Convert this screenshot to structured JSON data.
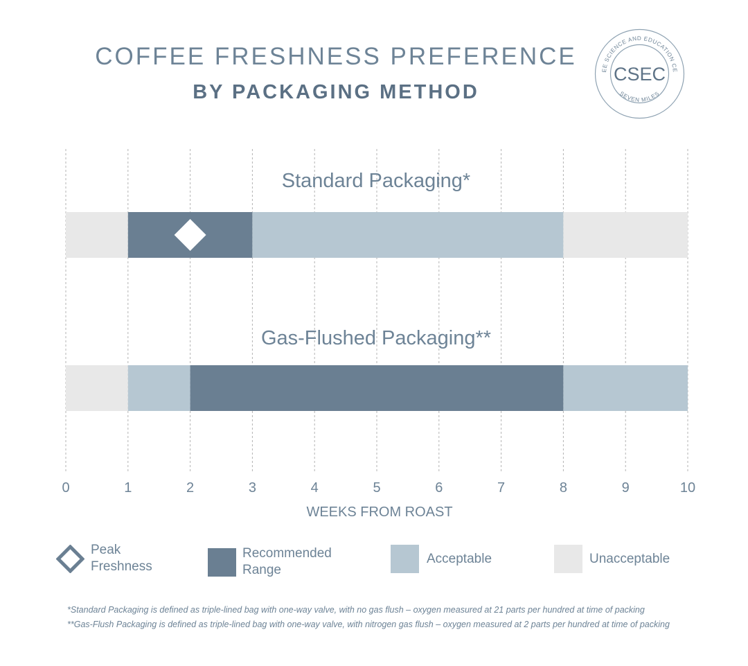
{
  "title": "COFFEE FRESHNESS PREFERENCE",
  "subtitle": "BY PACKAGING METHOD",
  "logo": {
    "text": "CSEC",
    "ring_top": "COFFEE SCIENCE AND EDUCATION CENTRE",
    "ring_bottom": "SEVEN MILES"
  },
  "colors": {
    "recommended": "#6a7f92",
    "acceptable": "#b6c7d2",
    "unacceptable": "#e8e8e8",
    "text": "#6d8396"
  },
  "chart_data": {
    "type": "bar",
    "orientation": "horizontal-ranges",
    "xlabel": "WEEKS FROM ROAST",
    "xlim": [
      0,
      10
    ],
    "xticks": [
      "0",
      "1",
      "2",
      "3",
      "4",
      "5",
      "6",
      "7",
      "8",
      "9",
      "10"
    ],
    "grid": true,
    "series": [
      {
        "name": "Standard Packaging*",
        "segments": [
          {
            "start": 0,
            "end": 1,
            "category": "unacceptable"
          },
          {
            "start": 1,
            "end": 3,
            "category": "recommended"
          },
          {
            "start": 3,
            "end": 8,
            "category": "acceptable"
          },
          {
            "start": 8,
            "end": 10,
            "category": "unacceptable"
          }
        ],
        "peak": 2
      },
      {
        "name": "Gas-Flushed Packaging**",
        "segments": [
          {
            "start": 0,
            "end": 1,
            "category": "unacceptable"
          },
          {
            "start": 1,
            "end": 2,
            "category": "acceptable"
          },
          {
            "start": 2,
            "end": 8,
            "category": "recommended"
          },
          {
            "start": 8,
            "end": 10,
            "category": "acceptable"
          }
        ]
      }
    ],
    "legend": [
      {
        "key": "peak",
        "label": "Peak\nFreshness"
      },
      {
        "key": "recommended",
        "label": "Recommended\nRange"
      },
      {
        "key": "acceptable",
        "label": "Acceptable"
      },
      {
        "key": "unacceptable",
        "label": "Unacceptable"
      }
    ]
  },
  "footnotes": [
    "*Standard Packaging is defined as triple-lined bag with one-way valve, with no gas flush – oxygen measured at 21 parts per hundred at time of packing",
    "**Gas-Flush Packaging is defined as triple-lined bag with one-way valve, with nitrogen gas flush – oxygen measured at 2 parts per hundred at time of packing"
  ]
}
